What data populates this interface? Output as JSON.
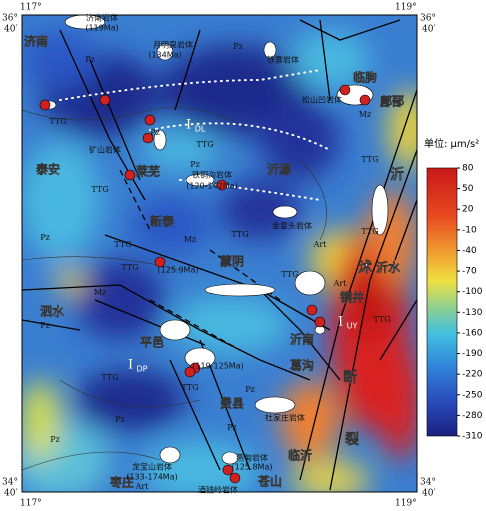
{
  "corners": {
    "lon_left": "117°",
    "lon_right": "119°",
    "lat_top": [
      "36°",
      "40′"
    ],
    "lat_bottom": [
      "34°",
      "40′"
    ]
  },
  "places": [
    "济南",
    "泰安",
    "莱芜",
    "新泰",
    "蒙阴",
    "平邑",
    "费县",
    "枣庄",
    "苍山",
    "临沂",
    "沂南",
    "沂水",
    "临朐",
    "沂源",
    "泗水",
    "鄌郚",
    "葛沟",
    "铜井"
  ],
  "fault_label": [
    "沂",
    "沭",
    "断",
    "裂"
  ],
  "rock_bodies": [
    "济南岩体",
    "(119Ma)",
    "月明泉岩体",
    "(134Ma)",
    "铁寨岩体",
    "松山凹岩体",
    "矿山岩体",
    "铁铜沟岩体",
    "(120-142Ma)",
    "金星头岩体",
    "杜家庄岩体",
    "龙宝山岩体",
    "(133-174Ma)",
    "燕甸岩体",
    "(125.8Ma)",
    "酒钱岭岩体",
    "(119-125Ma)",
    "(125.9Ma)"
  ],
  "tectonic_units": [
    {
      "main": "I",
      "sub": "DL"
    },
    {
      "main": "I",
      "sub": "DP"
    },
    {
      "main": "I",
      "sub": "UY"
    }
  ],
  "units": [
    "TTG",
    "Pz",
    "Mz",
    "Art"
  ],
  "colorbar": {
    "title": "单位: μm/s²",
    "lim": [
      -310,
      80
    ],
    "ticks": [
      80,
      50,
      20,
      -10,
      -40,
      -70,
      -100,
      -130,
      -160,
      -190,
      -220,
      -250,
      -280,
      -310
    ]
  }
}
